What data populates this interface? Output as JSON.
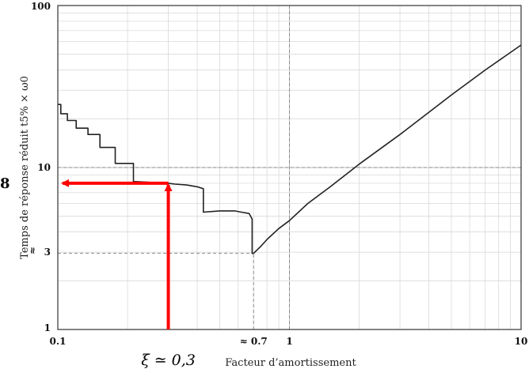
{
  "chart_data": {
    "type": "line",
    "title": "",
    "xlabel": "Facteur d’amortissement",
    "ylabel": "Temps de réponse réduit t5% × ω0",
    "xscale": "log",
    "yscale": "log",
    "xlim": [
      0.1,
      10
    ],
    "ylim": [
      1,
      100
    ],
    "grid": true,
    "x_ticks": [
      {
        "value": 0.1,
        "label": "0.1"
      },
      {
        "value": 0.7,
        "label": "≈ 0.7"
      },
      {
        "value": 1,
        "label": "1"
      },
      {
        "value": 10,
        "label": "10"
      }
    ],
    "y_ticks": [
      {
        "value": 1,
        "label": "1"
      },
      {
        "value": 3,
        "label": "3"
      },
      {
        "value": 10,
        "label": "10"
      },
      {
        "value": 100,
        "label": "100"
      }
    ],
    "y_approx_marker": "≈",
    "series": [
      {
        "color": "#222222",
        "x": [
          0.1,
          0.103,
          0.103,
          0.11,
          0.11,
          0.12,
          0.12,
          0.135,
          0.135,
          0.152,
          0.152,
          0.177,
          0.177,
          0.212,
          0.212,
          0.3,
          0.32,
          0.36,
          0.4,
          0.425,
          0.425,
          0.5,
          0.58,
          0.62,
          0.67,
          0.69,
          0.69,
          0.7,
          0.75,
          0.8,
          0.9,
          1.0,
          1.2,
          1.5,
          2,
          3,
          5,
          7,
          10
        ],
        "y": [
          24.5,
          24.5,
          21.5,
          21.5,
          19.5,
          19.5,
          17.5,
          17.5,
          16,
          16,
          13.3,
          13.3,
          10.6,
          10.6,
          8.2,
          8.0,
          7.9,
          7.8,
          7.6,
          7.4,
          5.3,
          5.4,
          5.4,
          5.3,
          5.2,
          4.8,
          2.95,
          2.95,
          3.25,
          3.6,
          4.2,
          4.7,
          6.0,
          7.6,
          10.5,
          16,
          28,
          40,
          57
        ]
      }
    ],
    "reference_lines": [
      {
        "axis": "y",
        "value": 10,
        "from_x": 0.1,
        "to_x": 10
      },
      {
        "axis": "y",
        "value": 2.95,
        "from_x": 0.1,
        "to_x": 0.7
      },
      {
        "axis": "x",
        "value": 0.7,
        "from_y": 1,
        "to_y": 2.95
      },
      {
        "axis": "x",
        "value": 1,
        "from_y": 1,
        "to_y": 100
      }
    ],
    "annotation": {
      "color": "#ff0000",
      "arrow_up_x": 0.3,
      "arrow_left_y": 8,
      "y_value_label": "8",
      "x_value_label": "ξ ≃ 0,3"
    }
  }
}
